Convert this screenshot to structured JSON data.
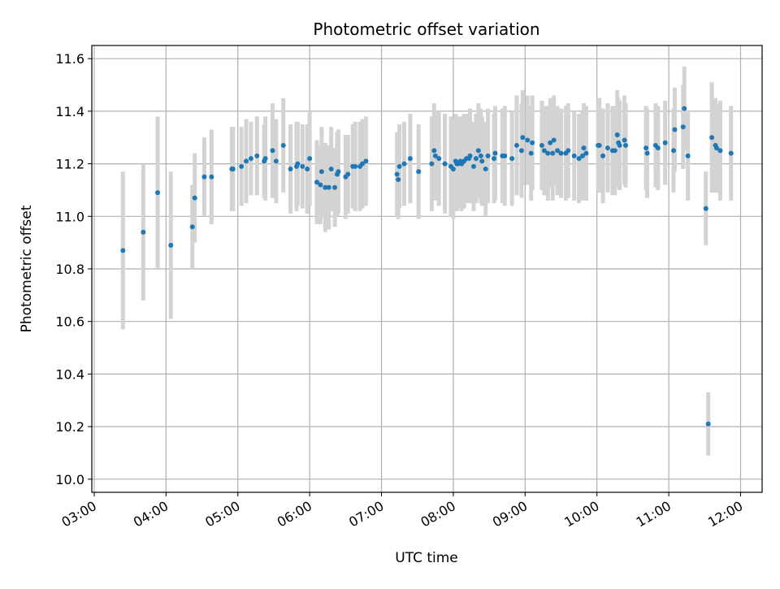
{
  "chart_data": {
    "type": "scatter",
    "title": "Photometric offset variation",
    "xlabel": "UTC time",
    "ylabel": "Photometric offset",
    "xlim": [
      "02:58",
      "12:18"
    ],
    "ylim": [
      9.95,
      11.65
    ],
    "x_ticks": [
      "03:00",
      "04:00",
      "05:00",
      "06:00",
      "07:00",
      "08:00",
      "09:00",
      "10:00",
      "11:00",
      "12:00"
    ],
    "y_ticks": [
      "10.0",
      "10.2",
      "10.4",
      "10.6",
      "10.8",
      "11.0",
      "11.2",
      "11.4",
      "11.6"
    ],
    "grid": true,
    "colors": {
      "points": "#1f77b4",
      "error_bars": "#d3d3d3",
      "grid": "#b0b0b0"
    },
    "series": [
      {
        "x": [
          "03:24",
          "03:41",
          "03:53",
          "04:04",
          "04:22",
          "04:24",
          "04:32",
          "04:38",
          "04:55",
          "04:56",
          "05:03",
          "05:07",
          "05:11",
          "05:16",
          "05:22",
          "05:23",
          "05:29",
          "05:32",
          "05:38",
          "05:44",
          "05:49",
          "05:50",
          "05:54",
          "05:58",
          "06:00",
          "06:06",
          "06:09",
          "06:10",
          "06:13",
          "06:16",
          "06:18",
          "06:21",
          "06:23",
          "06:24",
          "06:30",
          "06:32",
          "06:36",
          "06:38",
          "06:42",
          "06:44",
          "06:47",
          "07:13",
          "07:14",
          "07:15",
          "07:19",
          "07:24",
          "07:31",
          "07:42",
          "07:44",
          "07:45",
          "07:48",
          "07:53",
          "07:58",
          "08:00",
          "08:02",
          "08:03",
          "08:04",
          "08:06",
          "08:07",
          "08:09",
          "08:11",
          "08:13",
          "08:14",
          "08:17",
          "08:19",
          "08:21",
          "08:23",
          "08:24",
          "08:27",
          "08:29",
          "08:34",
          "08:35",
          "08:41",
          "08:43",
          "08:49",
          "08:53",
          "08:57",
          "08:58",
          "09:02",
          "09:05",
          "09:06",
          "09:14",
          "09:16",
          "09:19",
          "09:21",
          "09:23",
          "09:24",
          "09:27",
          "09:30",
          "09:34",
          "09:36",
          "09:41",
          "09:45",
          "09:48",
          "09:49",
          "09:51",
          "10:01",
          "10:02",
          "10:05",
          "10:09",
          "10:13",
          "10:15",
          "10:17",
          "10:18",
          "10:19",
          "10:23",
          "10:24",
          "10:41",
          "10:42",
          "10:49",
          "10:51",
          "10:57",
          "11:04",
          "11:05",
          "11:12",
          "11:13",
          "11:16",
          "11:31",
          "11:33",
          "11:36",
          "11:39",
          "11:40",
          "11:43",
          "11:52"
        ],
        "y": [
          10.87,
          10.94,
          11.09,
          10.89,
          10.96,
          11.07,
          11.15,
          11.15,
          11.18,
          11.18,
          11.19,
          11.21,
          11.22,
          11.23,
          11.21,
          11.22,
          11.25,
          11.21,
          11.27,
          11.18,
          11.19,
          11.2,
          11.19,
          11.18,
          11.22,
          11.13,
          11.12,
          11.17,
          11.11,
          11.11,
          11.18,
          11.11,
          11.16,
          11.17,
          11.15,
          11.16,
          11.19,
          11.19,
          11.19,
          11.2,
          11.21,
          11.16,
          11.14,
          11.19,
          11.2,
          11.22,
          11.17,
          11.2,
          11.25,
          11.23,
          11.22,
          11.2,
          11.19,
          11.18,
          11.21,
          11.2,
          11.2,
          11.21,
          11.2,
          11.21,
          11.22,
          11.22,
          11.23,
          11.19,
          11.22,
          11.25,
          11.23,
          11.21,
          11.18,
          11.23,
          11.22,
          11.24,
          11.23,
          11.23,
          11.22,
          11.27,
          11.25,
          11.3,
          11.29,
          11.24,
          11.28,
          11.27,
          11.25,
          11.24,
          11.28,
          11.24,
          11.29,
          11.25,
          11.24,
          11.24,
          11.25,
          11.23,
          11.22,
          11.23,
          11.26,
          11.24,
          11.27,
          11.27,
          11.23,
          11.26,
          11.25,
          11.25,
          11.31,
          11.28,
          11.27,
          11.29,
          11.27,
          11.26,
          11.24,
          11.27,
          11.26,
          11.28,
          11.25,
          11.33,
          11.34,
          11.41,
          11.23,
          11.03,
          10.21,
          11.3,
          11.27,
          11.26,
          11.25,
          11.24
        ],
        "yerr": [
          0.3,
          0.26,
          0.29,
          0.28,
          0.16,
          0.17,
          0.15,
          0.18,
          0.16,
          0.16,
          0.15,
          0.16,
          0.14,
          0.15,
          0.14,
          0.16,
          0.18,
          0.16,
          0.18,
          0.17,
          0.17,
          0.16,
          0.16,
          0.17,
          0.18,
          0.16,
          0.15,
          0.17,
          0.17,
          0.16,
          0.16,
          0.15,
          0.16,
          0.16,
          0.16,
          0.15,
          0.16,
          0.17,
          0.17,
          0.17,
          0.17,
          0.16,
          0.15,
          0.16,
          0.16,
          0.17,
          0.18,
          0.18,
          0.18,
          0.17,
          0.18,
          0.19,
          0.19,
          0.19,
          0.18,
          0.18,
          0.17,
          0.17,
          0.18,
          0.18,
          0.17,
          0.17,
          0.18,
          0.17,
          0.17,
          0.18,
          0.18,
          0.17,
          0.18,
          0.18,
          0.17,
          0.18,
          0.18,
          0.19,
          0.18,
          0.19,
          0.18,
          0.18,
          0.17,
          0.18,
          0.18,
          0.17,
          0.17,
          0.18,
          0.17,
          0.18,
          0.17,
          0.17,
          0.17,
          0.18,
          0.18,
          0.17,
          0.17,
          0.17,
          0.17,
          0.18,
          0.17,
          0.18,
          0.18,
          0.17,
          0.17,
          0.17,
          0.17,
          0.17,
          0.17,
          0.17,
          0.16,
          0.16,
          0.17,
          0.16,
          0.16,
          0.16,
          0.16,
          0.16,
          0.16,
          0.16,
          0.17,
          0.14,
          0.12,
          0.21,
          0.18,
          0.17,
          0.19,
          0.18
        ]
      }
    ]
  }
}
